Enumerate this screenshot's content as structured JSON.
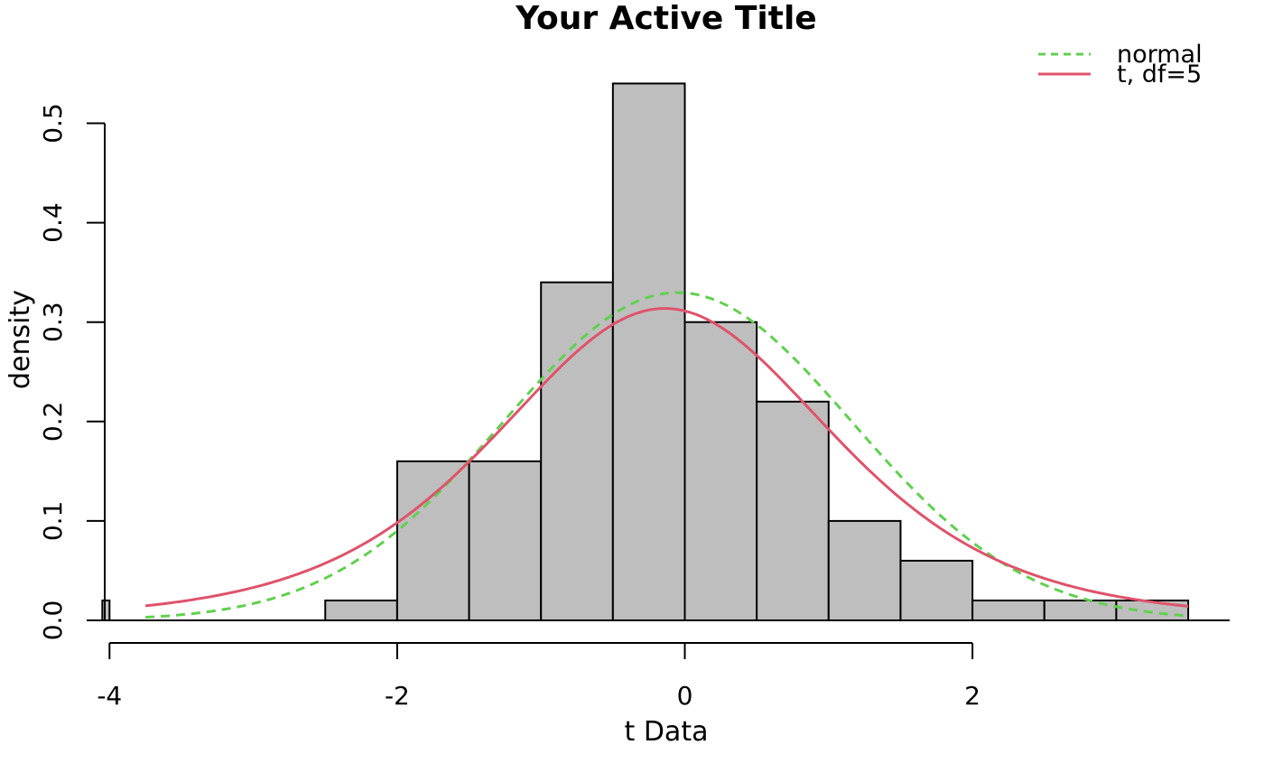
{
  "chart_data": {
    "type": "bar",
    "title": "Your Active Title",
    "xlabel": "t Data",
    "ylabel": "density",
    "xlim": [
      -4,
      3.5
    ],
    "ylim": [
      0,
      0.55
    ],
    "x_ticks": [
      -4,
      -2,
      0,
      2
    ],
    "x_tick_labels": [
      "-4",
      "-2",
      "0",
      "2"
    ],
    "y_ticks": [
      0,
      0.1,
      0.2,
      0.3,
      0.4,
      0.5
    ],
    "y_tick_labels": [
      "0.0",
      "0.1",
      "0.2",
      "0.3",
      "0.4",
      "0.5"
    ],
    "histogram": {
      "color": "#bebebe",
      "bins": [
        {
          "x0": -4.05,
          "x1": -4.0,
          "density": 0.02
        },
        {
          "x0": -2.5,
          "x1": -2.0,
          "density": 0.02
        },
        {
          "x0": -2.0,
          "x1": -1.5,
          "density": 0.16
        },
        {
          "x0": -1.5,
          "x1": -1.0,
          "density": 0.16
        },
        {
          "x0": -1.0,
          "x1": -0.5,
          "density": 0.34
        },
        {
          "x0": -0.5,
          "x1": 0.0,
          "density": 0.54
        },
        {
          "x0": 0.0,
          "x1": 0.5,
          "density": 0.3
        },
        {
          "x0": 0.5,
          "x1": 1.0,
          "density": 0.22
        },
        {
          "x0": 1.0,
          "x1": 1.5,
          "density": 0.1
        },
        {
          "x0": 1.5,
          "x1": 2.0,
          "density": 0.06
        },
        {
          "x0": 2.0,
          "x1": 2.5,
          "density": 0.02
        },
        {
          "x0": 2.5,
          "x1": 3.0,
          "density": 0.02
        },
        {
          "x0": 3.0,
          "x1": 3.5,
          "density": 0.02
        }
      ]
    },
    "series": [
      {
        "name": "normal",
        "color": "#61d04f",
        "style": "dashed",
        "dist": "normal",
        "mean": -0.05,
        "sd": 1.21,
        "x_range": [
          -3.75,
          3.5
        ]
      },
      {
        "name": "t, df=5",
        "color": "#df536b",
        "style": "solid",
        "dist": "t",
        "df": 5,
        "location": -0.14,
        "scale": 1.21,
        "x_range": [
          -3.75,
          3.5
        ]
      }
    ],
    "legend_position": "top-right",
    "grid": false
  }
}
